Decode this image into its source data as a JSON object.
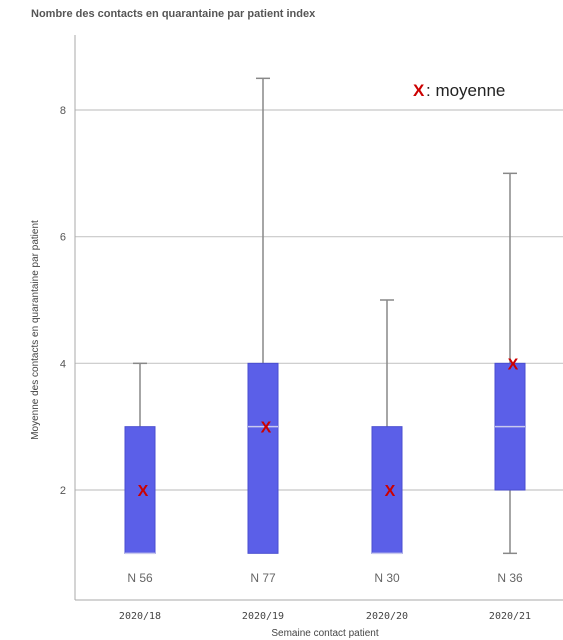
{
  "chart_data": {
    "type": "box",
    "title": "Nombre des contacts en quarantaine par patient index",
    "xlabel": "Semaine contact patient",
    "ylabel": "Moyenne des contacts en quarantaine par patient",
    "ylim": [
      0,
      9
    ],
    "yticks": [
      2,
      4,
      6,
      8
    ],
    "grid": true,
    "legend": {
      "position": "top-right",
      "marker": "X",
      "label": ": moyenne"
    },
    "colors": {
      "box": "#5b5fe8",
      "median": "#c9c9ee",
      "mean": "#cc0000",
      "whisker": "#888888",
      "grid": "#c8c8c8"
    },
    "categories": [
      "2020/18",
      "2020/19",
      "2020/20",
      "2020/21"
    ],
    "boxes": [
      {
        "category": "2020/18",
        "min": 1,
        "q1": 1,
        "median": 1,
        "q3": 3,
        "max": 4,
        "mean": 2,
        "n_label": "N 56"
      },
      {
        "category": "2020/19",
        "min": 1,
        "q1": 1,
        "median": 3,
        "q3": 4,
        "max": 8.5,
        "mean": 3,
        "n_label": "N 77"
      },
      {
        "category": "2020/20",
        "min": 1,
        "q1": 1,
        "median": 1,
        "q3": 3,
        "max": 5,
        "mean": 2,
        "n_label": "N  30"
      },
      {
        "category": "2020/21",
        "min": 1,
        "q1": 2,
        "median": 3,
        "q3": 4,
        "max": 7,
        "mean": 4,
        "n_label": "N 36"
      }
    ]
  }
}
